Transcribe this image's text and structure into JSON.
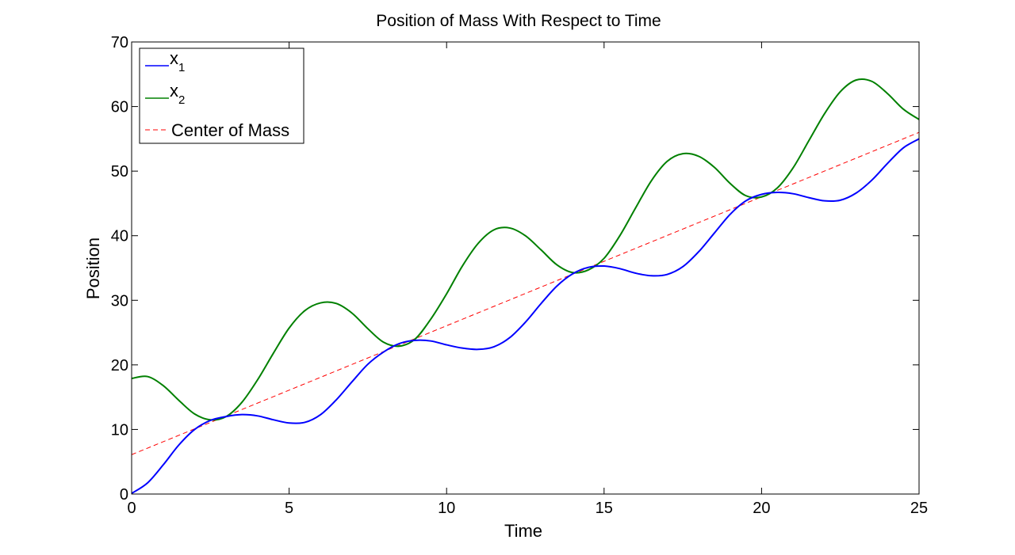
{
  "chart_data": {
    "type": "line",
    "title": "Position of Mass With Respect to Time",
    "xlabel": "Time",
    "ylabel": "Position",
    "xlim": [
      0,
      25
    ],
    "ylim": [
      0,
      70
    ],
    "xticks": [
      0,
      5,
      10,
      15,
      20,
      25
    ],
    "yticks": [
      0,
      10,
      20,
      30,
      40,
      50,
      60,
      70
    ],
    "grid": false,
    "legend_position": "top-left",
    "series": [
      {
        "name": "x_1",
        "legend_main": "x",
        "legend_sub": "1",
        "color": "#0000ff",
        "style": "solid",
        "x": [
          0,
          0.5,
          1,
          1.5,
          2,
          2.5,
          3,
          3.5,
          4,
          4.5,
          5,
          5.5,
          6,
          6.5,
          7,
          7.5,
          8,
          8.5,
          9,
          9.5,
          10,
          10.5,
          11,
          11.5,
          12,
          12.5,
          13,
          13.5,
          14,
          14.5,
          15,
          15.5,
          16,
          16.5,
          17,
          17.5,
          18,
          18.5,
          19,
          19.5,
          20,
          20.5,
          21,
          21.5,
          22,
          22.5,
          23,
          23.5,
          24,
          24.5,
          25
        ],
        "y": [
          0.1,
          1.7,
          4.5,
          7.6,
          10.0,
          11.4,
          12.0,
          12.3,
          12.1,
          11.5,
          11.0,
          11.1,
          12.3,
          14.6,
          17.4,
          20.1,
          22.0,
          23.3,
          23.8,
          23.7,
          23.1,
          22.6,
          22.4,
          22.8,
          24.2,
          26.6,
          29.5,
          32.2,
          34.1,
          35.1,
          35.3,
          34.9,
          34.2,
          33.8,
          34.0,
          35.2,
          37.5,
          40.4,
          43.3,
          45.4,
          46.4,
          46.7,
          46.5,
          45.9,
          45.4,
          45.5,
          46.6,
          48.6,
          51.2,
          53.6,
          55.0
        ]
      },
      {
        "name": "x_2",
        "legend_main": "x",
        "legend_sub": "2",
        "color": "#008000",
        "style": "solid",
        "x": [
          0,
          0.5,
          1,
          1.5,
          2,
          2.5,
          3,
          3.5,
          4,
          4.5,
          5,
          5.5,
          6,
          6.5,
          7,
          7.5,
          8,
          8.5,
          9,
          9.5,
          10,
          10.5,
          11,
          11.5,
          12,
          12.5,
          13,
          13.5,
          14,
          14.5,
          15,
          15.5,
          16,
          16.5,
          17,
          17.5,
          18,
          18.5,
          19,
          19.5,
          20,
          20.5,
          21,
          21.5,
          22,
          22.5,
          23,
          23.5,
          24,
          24.5,
          25
        ],
        "y": [
          17.9,
          18.2,
          16.8,
          14.5,
          12.4,
          11.5,
          12.0,
          14.2,
          17.7,
          21.8,
          25.7,
          28.4,
          29.6,
          29.5,
          28.0,
          25.6,
          23.5,
          22.9,
          24.0,
          27.1,
          31.0,
          35.3,
          38.8,
          40.9,
          41.2,
          40.0,
          37.8,
          35.5,
          34.3,
          34.7,
          36.5,
          40.0,
          44.3,
          48.5,
          51.5,
          52.7,
          52.3,
          50.6,
          48.1,
          46.2,
          46.0,
          47.4,
          50.5,
          54.7,
          58.9,
          62.3,
          64.1,
          63.9,
          62.0,
          59.6,
          58.0
        ]
      },
      {
        "name": "Center of Mass",
        "color": "#ff0000",
        "style": "dashed",
        "x": [
          0,
          25
        ],
        "y": [
          6.1,
          56.0
        ]
      }
    ]
  }
}
